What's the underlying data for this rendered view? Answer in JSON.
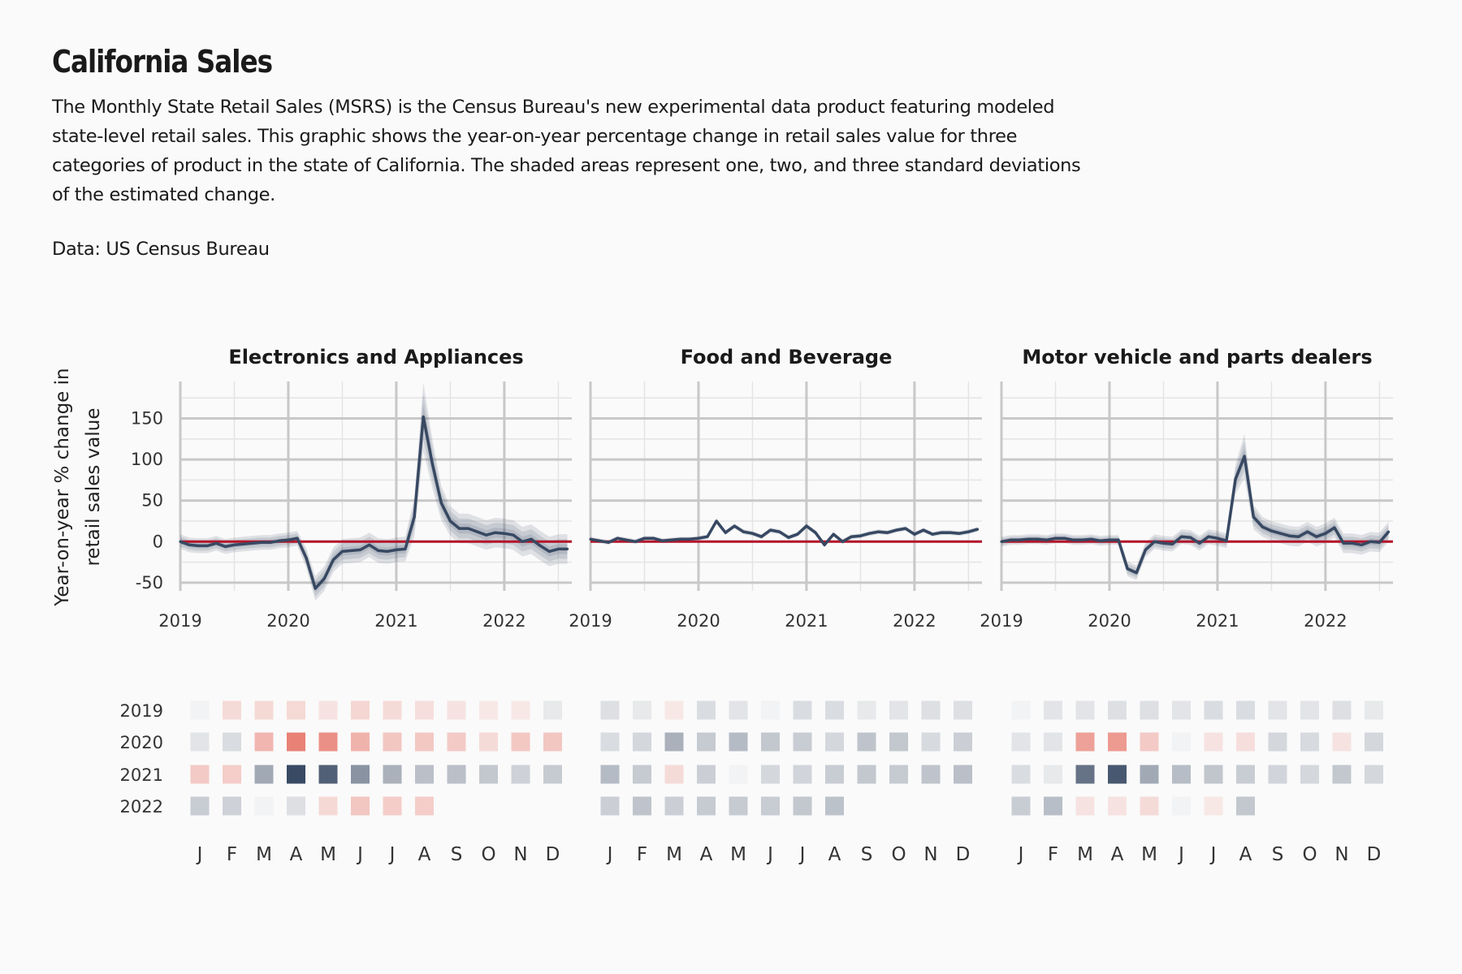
{
  "header": {
    "title": "California Sales",
    "description": "The Monthly State Retail Sales (MSRS) is the Census Bureau's new experimental data product featuring modeled state-level retail sales. This graphic shows the year-on-year percentage change in retail sales value for three categories of product in the state of California. The shaded areas represent one, two, and three standard deviations of the estimated change.",
    "source": "Data: US Census Bureau"
  },
  "colors": {
    "background": "#fafafa",
    "line": "#374862",
    "band": "#374862",
    "zero_line": "#b5152b",
    "grid": "#c8c8c8",
    "heat_positive": "#374862",
    "heat_negative": "#e0402e"
  },
  "chart_data": {
    "type": "line",
    "ylabel": "Year-on-year % change in retail sales value",
    "ylim": [
      -60,
      195
    ],
    "yticks": [
      -50,
      0,
      50,
      100,
      150
    ],
    "xticks": [
      "2019",
      "2020",
      "2021",
      "2022"
    ],
    "months": [
      "J",
      "F",
      "M",
      "A",
      "M",
      "J",
      "J",
      "A",
      "S",
      "O",
      "N",
      "D"
    ],
    "years": [
      "2019",
      "2020",
      "2021",
      "2022"
    ],
    "grid": true,
    "series": [
      {
        "name": "Electronics and Appliances",
        "x_start": "2019-01",
        "values": [
          0,
          -4,
          -5,
          -5,
          -2,
          -6,
          -4,
          -3,
          -2,
          -1,
          -1,
          1,
          2,
          4,
          -20,
          -57,
          -45,
          -22,
          -12,
          -11,
          -10,
          -4,
          -11,
          -12,
          -10,
          -9,
          30,
          152,
          95,
          47,
          25,
          16,
          16,
          12,
          8,
          11,
          10,
          8,
          0,
          3,
          -5,
          -12,
          -9,
          -9
        ],
        "sd": [
          3,
          3,
          3,
          3,
          3,
          3,
          3,
          3,
          3,
          3,
          3,
          3,
          3,
          3,
          4,
          5,
          5,
          5,
          5,
          5,
          5,
          5,
          5,
          5,
          5,
          5,
          8,
          14,
          10,
          7,
          6,
          6,
          6,
          6,
          6,
          6,
          6,
          6,
          6,
          6,
          6,
          6,
          6,
          6
        ]
      },
      {
        "name": "Food and Beverage",
        "x_start": "2019-01",
        "values": [
          3,
          1,
          -1,
          4,
          2,
          0,
          4,
          4,
          1,
          2,
          3,
          3,
          4,
          6,
          25,
          11,
          19,
          12,
          10,
          6,
          14,
          12,
          5,
          9,
          19,
          11,
          -4,
          9,
          0,
          6,
          7,
          10,
          12,
          11,
          14,
          16,
          9,
          14,
          9,
          11,
          11,
          10,
          12,
          15
        ],
        "sd": [
          1,
          1,
          1,
          1,
          1,
          1,
          1,
          1,
          1,
          1,
          1,
          1,
          1,
          1,
          1,
          1,
          1,
          1,
          1,
          1,
          1,
          1,
          1,
          1,
          1,
          1,
          1,
          1,
          1,
          1,
          1,
          1,
          1,
          1,
          1,
          1,
          1,
          1,
          1,
          1,
          1,
          1,
          1,
          1
        ]
      },
      {
        "name": "Motor vehicle and parts dealers",
        "x_start": "2019-01",
        "values": [
          0,
          2,
          2,
          3,
          3,
          2,
          4,
          4,
          2,
          2,
          3,
          1,
          2,
          2,
          -33,
          -38,
          -10,
          0,
          -2,
          -3,
          6,
          5,
          -2,
          6,
          4,
          1,
          76,
          104,
          30,
          18,
          13,
          10,
          7,
          6,
          12,
          6,
          10,
          17,
          -2,
          -2,
          -4,
          0,
          -1,
          12
        ],
        "sd": [
          2,
          2,
          2,
          2,
          2,
          2,
          2,
          2,
          2,
          2,
          2,
          2,
          2,
          2,
          3,
          3,
          3,
          3,
          3,
          3,
          3,
          3,
          3,
          3,
          3,
          3,
          6,
          9,
          5,
          4,
          4,
          4,
          4,
          4,
          4,
          4,
          4,
          4,
          4,
          4,
          4,
          4,
          4,
          4
        ]
      }
    ],
    "heatmap": {
      "note": "Year-on-year % change by month shown as tiles; color encodes value",
      "clamp": 120
    }
  }
}
